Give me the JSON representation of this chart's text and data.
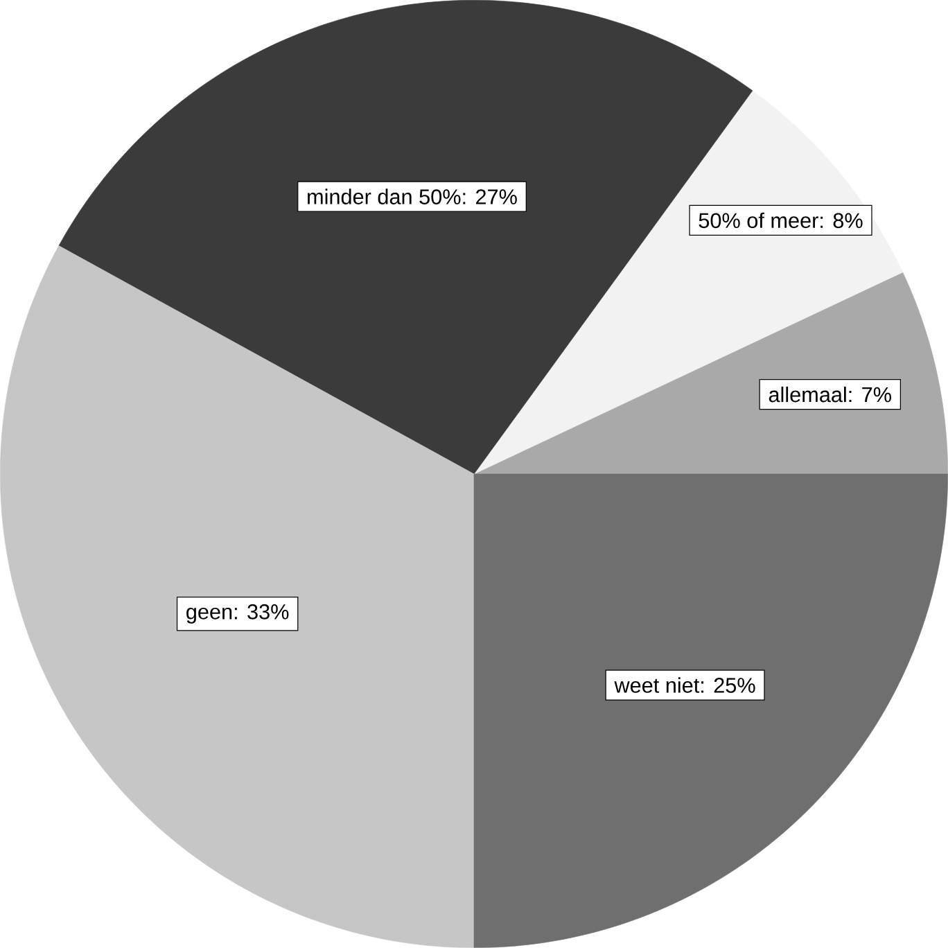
{
  "chart_data": {
    "type": "pie",
    "categories": [
      "allemaal: 7%",
      "50% of meer: 8%",
      "minder dan 50%: 27%",
      "geen: 33%",
      "weet niet: 25%"
    ],
    "values": [
      7,
      8,
      27,
      33,
      25
    ],
    "colors": [
      "#a9a9a9",
      "#f2f2f2",
      "#3b3b3b",
      "#c6c6c6",
      "#6f6f6f"
    ]
  }
}
